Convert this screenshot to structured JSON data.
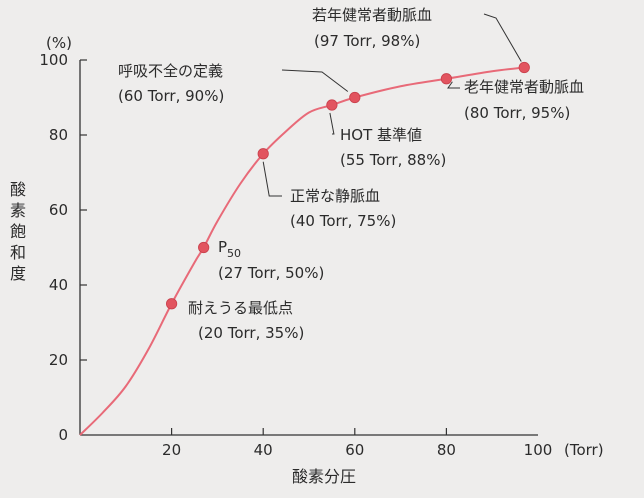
{
  "chart_data": {
    "type": "line",
    "xlabel": "酸素分圧",
    "x_unit": "(Torr)",
    "ylabel": "酸素飽和度",
    "y_unit": "(%)",
    "xlim": [
      0,
      100
    ],
    "ylim": [
      0,
      100
    ],
    "x_ticks": [
      20,
      40,
      60,
      80,
      100
    ],
    "y_ticks": [
      0,
      20,
      40,
      60,
      80,
      100
    ],
    "x_tick_labels": [
      "20",
      "40",
      "60",
      "80",
      "100"
    ],
    "y_tick_labels": [
      "0",
      "20",
      "40",
      "60",
      "80",
      "100"
    ],
    "origin_label": "0",
    "grid": false,
    "line_color": "#e86a78",
    "point_color": "#e2545f",
    "curve": [
      {
        "x": 0,
        "y": 0
      },
      {
        "x": 5,
        "y": 6
      },
      {
        "x": 10,
        "y": 13
      },
      {
        "x": 15,
        "y": 23
      },
      {
        "x": 20,
        "y": 35
      },
      {
        "x": 25,
        "y": 46
      },
      {
        "x": 27,
        "y": 50
      },
      {
        "x": 30,
        "y": 57
      },
      {
        "x": 35,
        "y": 67
      },
      {
        "x": 40,
        "y": 75
      },
      {
        "x": 45,
        "y": 81
      },
      {
        "x": 50,
        "y": 86
      },
      {
        "x": 55,
        "y": 88
      },
      {
        "x": 60,
        "y": 90
      },
      {
        "x": 70,
        "y": 93
      },
      {
        "x": 80,
        "y": 95
      },
      {
        "x": 90,
        "y": 97
      },
      {
        "x": 97,
        "y": 98
      }
    ],
    "points": [
      {
        "x": 20,
        "y": 35,
        "label": "耐えうる最低点",
        "value_label": "(20 Torr, 35%)"
      },
      {
        "x": 27,
        "y": 50,
        "label": "P",
        "label_sub": "50",
        "value_label": "(27 Torr, 50%)"
      },
      {
        "x": 40,
        "y": 75,
        "label": "正常な静脈血",
        "value_label": "(40 Torr, 75%)"
      },
      {
        "x": 55,
        "y": 88,
        "label": "HOT 基準値",
        "value_label": "(55 Torr, 88%)"
      },
      {
        "x": 60,
        "y": 90,
        "label": "呼吸不全の定義",
        "value_label": "(60 Torr, 90%)"
      },
      {
        "x": 80,
        "y": 95,
        "label": "老年健常者動脈血",
        "value_label": "(80 Torr, 95%)"
      },
      {
        "x": 97,
        "y": 98,
        "label": "若年健常者動脈血",
        "value_label": "(97 Torr, 98%)"
      }
    ]
  }
}
